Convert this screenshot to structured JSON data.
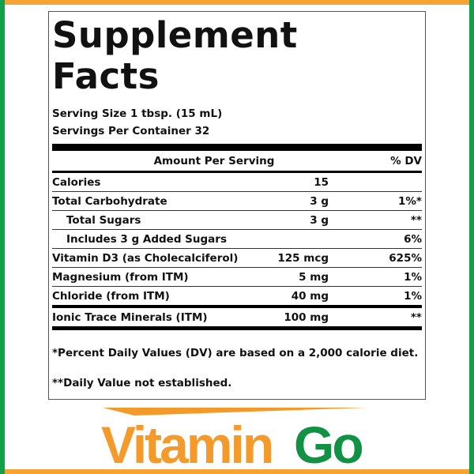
{
  "label": {
    "title_line1": "Supplement",
    "title_line2": "Facts",
    "serving_size": "Serving Size 1 tbsp. (15 mL)",
    "servings_per_container": "Servings Per Container 32",
    "header": {
      "amount": "Amount Per Serving",
      "dv": "% DV"
    },
    "rows": [
      {
        "name": "Calories",
        "amount": "15",
        "dv": ""
      },
      {
        "name": "Total Carbohydrate",
        "amount": "3 g",
        "dv": "1%*"
      },
      {
        "name": "Total Sugars",
        "amount": "3 g",
        "dv": "**"
      },
      {
        "name": "Includes 3 g Added Sugars",
        "amount": "",
        "dv": "6%"
      },
      {
        "name": "Vitamin D3 (as Cholecalciferol)",
        "amount": "125 mcg",
        "dv": "625%"
      },
      {
        "name": "Magnesium (from ITM)",
        "amount": "5 mg",
        "dv": "1%"
      },
      {
        "name": "Chloride (from ITM)",
        "amount": "40 mg",
        "dv": "1%"
      },
      {
        "name": "Ionic Trace Minerals (ITM)",
        "amount": "100 mg",
        "dv": "**"
      }
    ],
    "footnote1": "*Percent Daily Values (DV) are based on a 2,000 calorie diet.",
    "footnote2": "**Daily Value not established."
  },
  "logo": {
    "part1": "Vitamin",
    "part2": "Go",
    "colors": {
      "orange": "#f39a2b",
      "green": "#109143"
    }
  },
  "frame_colors": {
    "top_bottom": "#f5a433",
    "sides": "#11a04a"
  }
}
